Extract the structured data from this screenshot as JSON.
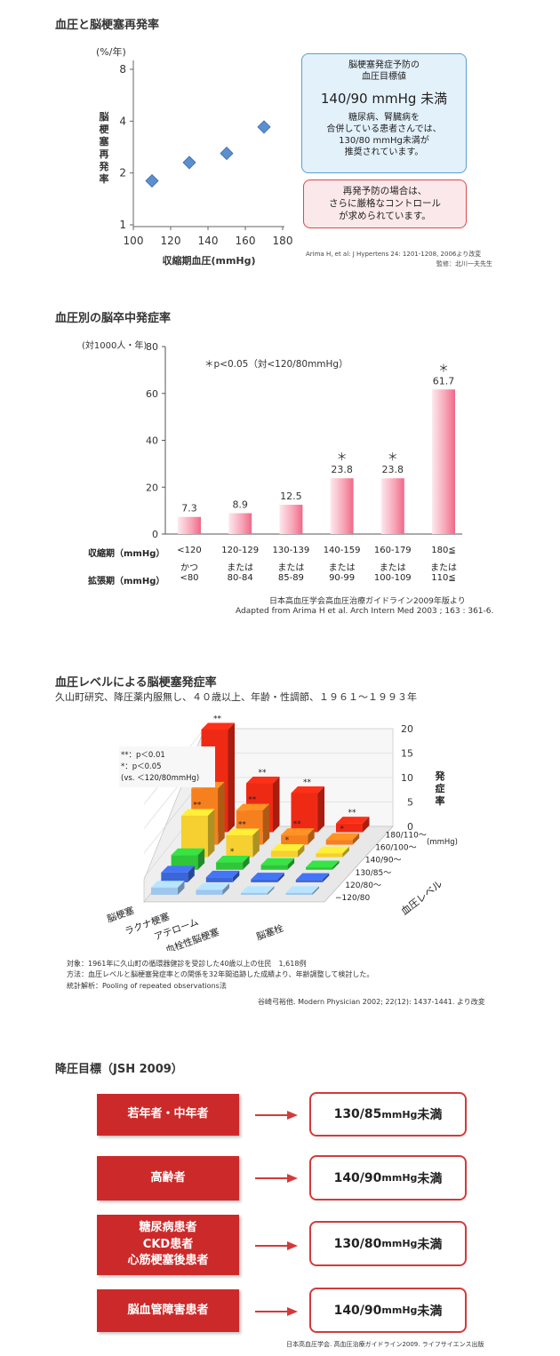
{
  "section1": {
    "title": "血圧と脳梗塞再発率",
    "y_unit": "(%/年)",
    "y_label": "脳梗塞再発率",
    "x_label": "収縮期血圧(mmHg)",
    "box_blue": {
      "title_line1": "脳梗塞発症予防の",
      "title_line2": "血圧目標値",
      "target": "140/90 mmHg 未満",
      "note_line1": "糖尿病、腎臓病を",
      "note_line2": "合併している患者さんでは、",
      "note_line3": "130/80 mmHg未満が",
      "note_line4": "推奨されています。"
    },
    "box_red": {
      "line1": "再発予防の場合は、",
      "line2": "さらに厳格なコントロール",
      "line3": "が求められています。"
    },
    "citation": "Arima H, et al: J Hypertens 24: 1201-1208, 2006より改変",
    "supervisor": "監修：北川一夫先生"
  },
  "section2": {
    "title": "血圧別の脳卒中発症率",
    "y_unit": "(対1000人・年)",
    "note": "＊p<0.05（対<120/80mmHg）",
    "row1_label": "収縮期（mmHg）",
    "row2_label": "拡張期（mmHg）",
    "systolic": [
      "<120",
      "120-129",
      "130-139",
      "140-159",
      "160-179",
      "180≦"
    ],
    "connectors": [
      "かつ",
      "または",
      "または",
      "または",
      "または",
      "または"
    ],
    "diastolic": [
      "<80",
      "80-84",
      "85-89",
      "90-99",
      "100-109",
      "110≦"
    ],
    "source_line1": "日本高血圧学会高血圧治療ガイドライン2009年版より",
    "source_line2": "Adapted from Arima H et al. Arch Intern Med 2003 ; 163 : 361-6."
  },
  "section3": {
    "title": "血圧レベルによる脳梗塞発症率",
    "subtitle": "久山町研究、降圧薬内服無し、４０歳以上、年齢・性調節、１９６１〜１９９３年",
    "legend_line1": "**：p＜0.01",
    "legend_line2": "*：p＜0.05",
    "legend_line3": "(vs. ＜120/80mmHg)",
    "z_label": "発症率",
    "z_unit": "(mmHg)",
    "bp_axis_label": "血圧レベル",
    "note_line1": "対象：1961年に久山町の循環器健診を受診した40歳以上の住民　1,618例",
    "note_line2": "方法：血圧レベルと脳梗塞発症率との関係を32年間追跡した成績より、年齢調整して検討した。",
    "note_line3": "統計解析：Pooling of repeated observations法",
    "citation": "谷崎弓裕他. Modern Physician 2002; 22(12): 1437-1441. より改変"
  },
  "section4": {
    "title": "降圧目標（JSH 2009）",
    "rows": [
      {
        "group": "若年者・中年者",
        "value": "130/85",
        "unit": "mmHg",
        "suffix": "未満"
      },
      {
        "group": "高齢者",
        "value": "140/90",
        "unit": "mmHg",
        "suffix": "未満"
      },
      {
        "group_line1": "糖尿病患者",
        "group_line2": "CKD患者",
        "group_line3": "心筋梗塞後患者",
        "value": "130/80",
        "unit": "mmHg",
        "suffix": "未満"
      },
      {
        "group": "脳血管障害患者",
        "value": "140/90",
        "unit": "mmHg",
        "suffix": "未満"
      }
    ],
    "source": "日本高血圧学会. 高血圧治療ガイドライン2009. ライフサイエンス出版"
  },
  "chart_data": [
    {
      "type": "scatter",
      "title": "血圧と脳梗塞再発率",
      "xlabel": "収縮期血圧(mmHg)",
      "ylabel": "脳梗塞再発率 (%/年)",
      "x": [
        110,
        130,
        150,
        170
      ],
      "y": [
        1.8,
        2.3,
        2.6,
        3.7
      ],
      "xlim": [
        100,
        180
      ],
      "xticks": [
        "100",
        "120",
        "140",
        "160",
        "180"
      ],
      "ylim": [
        1,
        8
      ],
      "yscale": "log",
      "yticks": [
        "1",
        "2",
        "4",
        "8"
      ],
      "marker_color": "#5b8fcf"
    },
    {
      "type": "bar",
      "title": "血圧別の脳卒中発症率",
      "ylabel": "(対1000人・年)",
      "categories": [
        "<120/<80",
        "120-129/80-84",
        "130-139/85-89",
        "140-159/90-99",
        "160-179/100-109",
        "180≦/110≦"
      ],
      "values": [
        7.3,
        8.9,
        12.5,
        23.8,
        23.8,
        61.7
      ],
      "value_labels": [
        "7.3",
        "8.9",
        "12.5",
        "23.8",
        "23.8",
        "61.7"
      ],
      "significant": [
        false,
        false,
        false,
        true,
        true,
        true
      ],
      "sig_mark": "＊",
      "ylim": [
        0,
        80
      ],
      "yticks": [
        "0",
        "20",
        "40",
        "60",
        "80"
      ],
      "bar_color": "#f27a95"
    },
    {
      "type": "bar",
      "title": "血圧レベルによる脳梗塞発症率",
      "subtype": "3d-bar",
      "bp_levels": [
        "−120/80",
        "120/80〜",
        "130/85〜",
        "140/90〜",
        "160/100〜",
        "180/110〜"
      ],
      "categories": [
        "脳梗塞",
        "ラクナ梗塞",
        "アテローム血栓性脳梗塞",
        "脳塞栓"
      ],
      "category_labels": [
        "脳梗塞",
        "ラクナ梗塞",
        "アテローム",
        "血栓性脳梗塞",
        "脳塞栓"
      ],
      "zlim": [
        0,
        20
      ],
      "zticks": [
        "0",
        "5",
        "10",
        "15",
        "20"
      ],
      "series": [
        {
          "bp": "−120/80",
          "values": [
            1.5,
            1.0,
            0.4,
            0.4
          ],
          "marks": [
            "",
            "",
            "",
            ""
          ]
        },
        {
          "bp": "120/80〜",
          "values": [
            2.0,
            1.0,
            0.6,
            0.5
          ],
          "marks": [
            "",
            "",
            "",
            ""
          ]
        },
        {
          "bp": "130/85〜",
          "values": [
            3.0,
            1.5,
            1.0,
            0.5
          ],
          "marks": [
            "",
            "*",
            "",
            ""
          ]
        },
        {
          "bp": "140/90〜",
          "values": [
            8.5,
            4.5,
            1.3,
            0.8
          ],
          "marks": [
            "**",
            "**",
            "*",
            ""
          ]
        },
        {
          "bp": "160/100〜",
          "values": [
            11.5,
            7.0,
            2.0,
            1.0
          ],
          "marks": [
            "**",
            "**",
            "**",
            "*"
          ]
        },
        {
          "bp": "180/110〜",
          "values": [
            21.0,
            10.0,
            8.0,
            1.8
          ],
          "marks": [
            "**",
            "**",
            "**",
            "**"
          ]
        }
      ],
      "level_colors": [
        "#9fc7ee",
        "#3a66d8",
        "#2fc63a",
        "#f5d030",
        "#f7801e",
        "#ee2a15"
      ]
    }
  ]
}
